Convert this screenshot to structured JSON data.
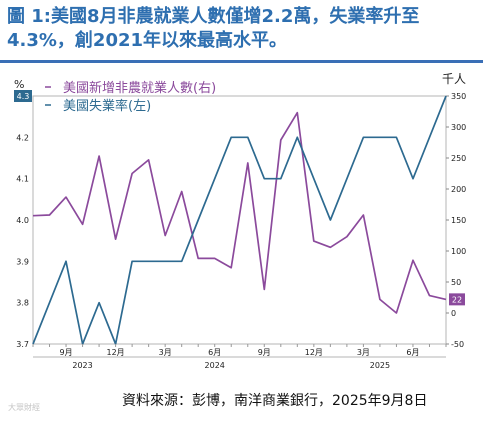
{
  "title_lines": [
    "圖 1:美國8月非農就業人數僅增2.2萬，失業率升至",
    "4.3%，創2021年以來最高水平。"
  ],
  "source": "資料來源：彭博，南洋商業銀行，2025年9月8日",
  "watermark": "大眾財經",
  "colors": {
    "title": "#2e6fb0",
    "payrolls": "#8b4a9c",
    "unemployment": "#2d6a90"
  },
  "chart_data": {
    "type": "line",
    "left_axis": {
      "unit_label": "%",
      "ylim": [
        3.7,
        4.3
      ],
      "ticks": [
        "3.7",
        "3.8",
        "3.9",
        "4.0",
        "4.1",
        "4.2"
      ]
    },
    "right_axis": {
      "unit_label": "千人",
      "ylim": [
        -50,
        350
      ],
      "ticks": [
        "-50",
        "0",
        "50",
        "100",
        "150",
        "200",
        "250",
        "300",
        "350"
      ]
    },
    "x_months": [
      "2023-07",
      "2023-08",
      "2023-09",
      "2023-10",
      "2023-11",
      "2023-12",
      "2024-01",
      "2024-02",
      "2024-03",
      "2024-04",
      "2024-05",
      "2024-06",
      "2024-07",
      "2024-08",
      "2024-09",
      "2024-10",
      "2024-11",
      "2024-12",
      "2025-01",
      "2025-02",
      "2025-03",
      "2025-04",
      "2025-05",
      "2025-06",
      "2025-07",
      "2025-08"
    ],
    "x_tick_labels": [
      {
        "month": "2023-09",
        "label": "9月"
      },
      {
        "month": "2023-12",
        "label": "12月"
      },
      {
        "month": "2024-03",
        "label": "3月"
      },
      {
        "month": "2024-06",
        "label": "6月"
      },
      {
        "month": "2024-09",
        "label": "9月"
      },
      {
        "month": "2024-12",
        "label": "12月"
      },
      {
        "month": "2025-03",
        "label": "3月"
      },
      {
        "month": "2025-06",
        "label": "6月"
      }
    ],
    "year_labels": [
      {
        "month": "2023-10",
        "label": "2023"
      },
      {
        "month": "2024-06",
        "label": "2024"
      },
      {
        "month": "2025-04",
        "label": "2025"
      }
    ],
    "series": [
      {
        "name": "美國新增非農就業人數(右)",
        "axis": "right",
        "values": [
          157,
          158,
          187,
          143,
          253,
          119,
          225,
          247,
          125,
          196,
          88,
          88,
          73,
          242,
          38,
          279,
          323,
          116,
          106,
          123,
          158,
          22,
          0,
          85,
          28,
          22
        ],
        "end_label": "22"
      },
      {
        "name": "美國失業率(左)",
        "axis": "left",
        "values": [
          3.7,
          3.8,
          3.9,
          3.7,
          3.8,
          3.7,
          3.9,
          3.9,
          3.9,
          3.9,
          4.0,
          4.1,
          4.2,
          4.2,
          4.1,
          4.1,
          4.2,
          4.1,
          4.0,
          4.1,
          4.2,
          4.2,
          4.2,
          4.1,
          4.2,
          4.3
        ],
        "end_label": "4.3"
      }
    ]
  }
}
